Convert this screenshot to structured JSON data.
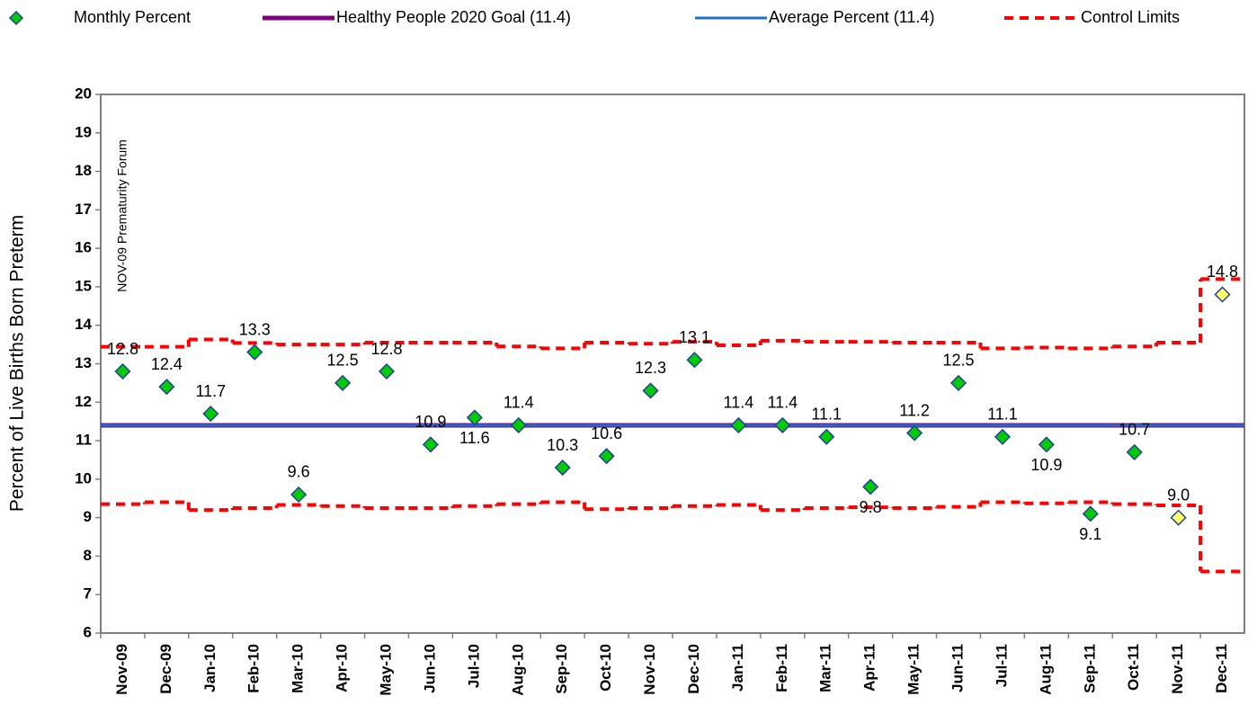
{
  "chart_data": {
    "type": "control",
    "y_label": "Percent of Live Births Born Preterm",
    "annotation": "NOV-09 Prematurity Forum",
    "categories": [
      "Nov-09",
      "Dec-09",
      "Jan-10",
      "Feb-10",
      "Mar-10",
      "Apr-10",
      "May-10",
      "Jun-10",
      "Jul-10",
      "Aug-10",
      "Sep-10",
      "Oct-10",
      "Nov-10",
      "Dec-10",
      "Jan-11",
      "Feb-11",
      "Mar-11",
      "Apr-11",
      "May-11",
      "Jun-11",
      "Jul-11",
      "Aug-11",
      "Sep-11",
      "Oct-11",
      "Nov-11",
      "Dec-11"
    ],
    "ylim": [
      6,
      20
    ],
    "yticks": [
      6,
      7,
      8,
      9,
      10,
      11,
      12,
      13,
      14,
      15,
      16,
      17,
      18,
      19,
      20
    ],
    "series": [
      {
        "name": "Monthly Percent",
        "color": "#00cc00",
        "outline": "#1f3fa0",
        "values": [
          12.8,
          12.4,
          11.7,
          13.3,
          9.6,
          12.5,
          12.8,
          10.9,
          11.6,
          11.4,
          10.3,
          10.6,
          12.3,
          13.1,
          11.4,
          11.4,
          11.1,
          9.8,
          11.2,
          12.5,
          11.1,
          10.9,
          9.1,
          10.7,
          9.0,
          14.8
        ],
        "value_labels": [
          "12.8",
          "12.4",
          "11.7",
          "13.3",
          "9.6",
          "12.5",
          "12.8",
          "10.9",
          "11.6",
          "11.4",
          "10.3",
          "10.6",
          "12.3",
          "13.1",
          "11.4",
          "11.4",
          "11.1",
          "9.8",
          "11.2",
          "12.5",
          "11.1",
          "10.9",
          "9.1",
          "10.7",
          "9.0",
          "14.8"
        ],
        "point_colors": [
          "#00cc00",
          "#00cc00",
          "#00cc00",
          "#00cc00",
          "#00cc00",
          "#00cc00",
          "#00cc00",
          "#00cc00",
          "#00cc00",
          "#00cc00",
          "#00cc00",
          "#00cc00",
          "#00cc00",
          "#00cc00",
          "#00cc00",
          "#00cc00",
          "#00cc00",
          "#00cc00",
          "#00cc00",
          "#00cc00",
          "#00cc00",
          "#00cc00",
          "#00cc00",
          "#00cc00",
          "#ffff66",
          "#ffff66"
        ]
      },
      {
        "name": "Healthy People 2020 Goal (11.4)",
        "color": "#800080",
        "value": 11.4
      },
      {
        "name": "Average Percent (11.4)",
        "color": "#1f6fc8",
        "value": 11.4
      },
      {
        "name": "Control Limits",
        "color": "#ff0000",
        "upper": [
          13.44,
          13.44,
          13.63,
          13.54,
          13.5,
          13.5,
          13.55,
          13.55,
          13.55,
          13.45,
          13.4,
          13.55,
          13.52,
          13.57,
          13.48,
          13.6,
          13.57,
          13.57,
          13.55,
          13.55,
          13.4,
          13.42,
          13.4,
          13.45,
          13.55,
          15.2
        ],
        "lower": [
          9.35,
          9.4,
          9.2,
          9.25,
          9.33,
          9.3,
          9.25,
          9.25,
          9.3,
          9.35,
          9.4,
          9.22,
          9.25,
          9.3,
          9.33,
          9.2,
          9.25,
          9.27,
          9.25,
          9.28,
          9.4,
          9.37,
          9.4,
          9.35,
          9.32,
          7.6
        ]
      }
    ]
  }
}
